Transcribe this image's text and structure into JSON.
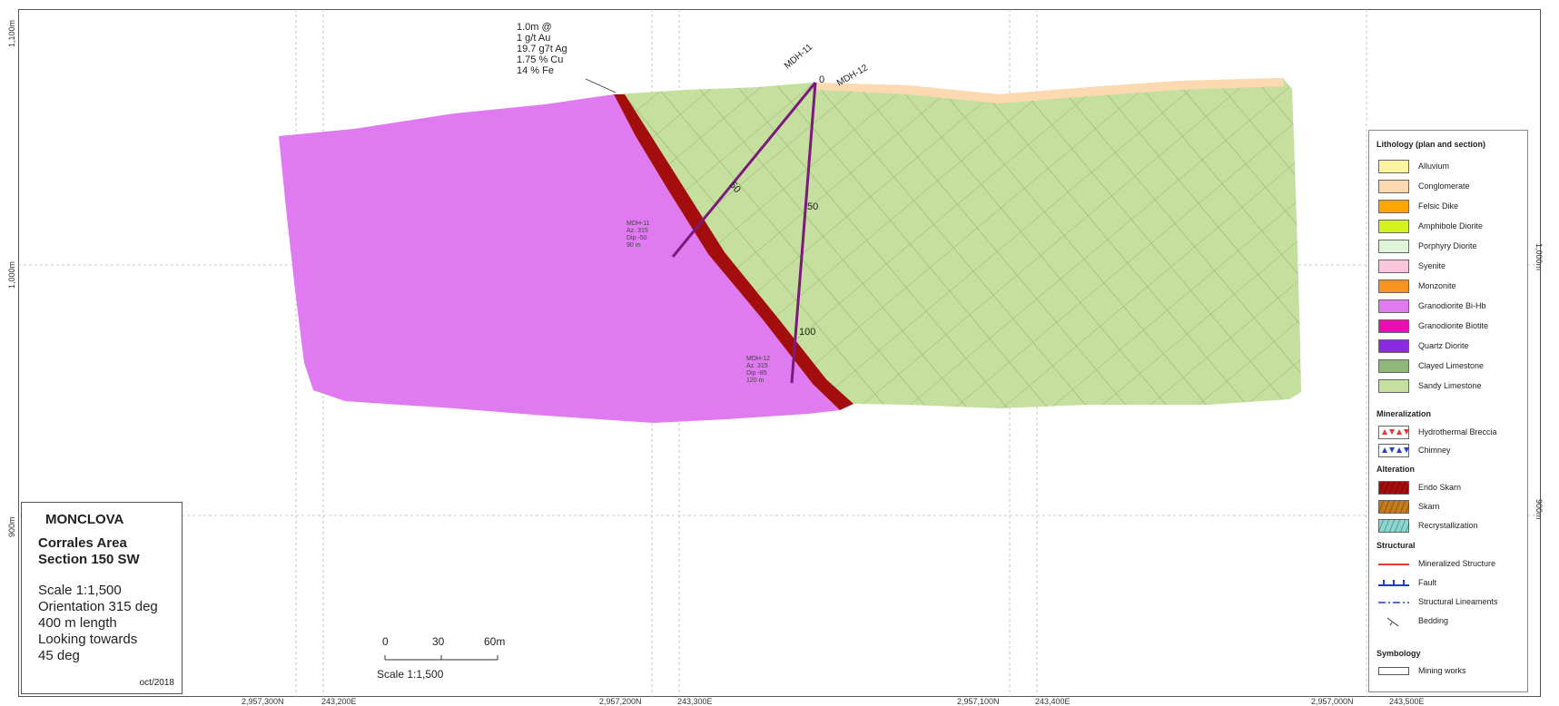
{
  "grid": {
    "elevations": [
      "1,100m",
      "1,000m",
      "900m"
    ],
    "northings": [
      "2,957,300N",
      "2,957,200N",
      "2,957,100N",
      "2,957,000N"
    ],
    "eastings": [
      "243,200E",
      "243,300E",
      "243,400E",
      "243,500E"
    ]
  },
  "assay_note": [
    "1.0m @",
    "1 g/t Au",
    "19.7 g7t Ag",
    "1.75 % Cu",
    "14 % Fe"
  ],
  "drillholes": [
    {
      "name": "MDH-11",
      "tag": [
        "MDH-11",
        "Az. 315",
        "Dip -50",
        "90 m"
      ],
      "depth_labels": [
        "0",
        "50"
      ]
    },
    {
      "name": "MDH-12",
      "tag": [
        "MDH-12",
        "Az. 315",
        "Dip -85",
        "120 m"
      ],
      "depth_labels": [
        "50",
        "100"
      ]
    }
  ],
  "title_block": {
    "name": "MONCLOVA",
    "area": [
      "Corrales Area",
      "Section 150 SW"
    ],
    "info": [
      "Scale 1:1,500",
      "Orientation 315 deg",
      "400 m length",
      "Looking towards",
      "45 deg"
    ],
    "date": "oct/2018"
  },
  "scale_bar": {
    "ticks": [
      "0",
      "30",
      "60m"
    ],
    "label": "Scale 1:1,500"
  },
  "legend": {
    "lithology_title": "Lithology (plan and section)",
    "lithology": [
      {
        "label": "Alluvium",
        "color": "#fff59d"
      },
      {
        "label": "Conglomerate",
        "color": "#fcd9b0"
      },
      {
        "label": "Felsic Dike",
        "color": "#ffa500"
      },
      {
        "label": "Amphibole Diorite",
        "color": "#d4f21b"
      },
      {
        "label": "Porphyry Diorite",
        "color": "#e0f5d8"
      },
      {
        "label": "Syenite",
        "color": "#fbc6dc"
      },
      {
        "label": "Monzonite",
        "color": "#f7931e"
      },
      {
        "label": "Granodiorite Bi-Hb",
        "color": "#e07af0"
      },
      {
        "label": "Granodiorite Biotite",
        "color": "#f00bb0"
      },
      {
        "label": "Quartz Diorite",
        "color": "#8a2be2"
      },
      {
        "label": "Clayed Limestone",
        "color": "#8fb878"
      },
      {
        "label": "Sandy Limestone",
        "color": "#c5df9e"
      }
    ],
    "mineralization_title": "Mineralization",
    "mineralization": [
      {
        "label": "Hydrothermal Breccia",
        "color": "#e53935"
      },
      {
        "label": "Chimney",
        "color": "#2a3fd6"
      }
    ],
    "alteration_title": "Alteration",
    "alteration": [
      {
        "label": "Endo Skarn",
        "color": "#a30d0d"
      },
      {
        "label": "Skarn",
        "color": "#c87a1e"
      },
      {
        "label": "Recrystallization",
        "color": "#8ad6cf"
      }
    ],
    "structural_title": "Structural",
    "structural": [
      {
        "label": "Mineralized Structure",
        "color": "#e53935"
      },
      {
        "label": "Fault",
        "color": "#1e3bd6"
      },
      {
        "label": "Structural Lineaments",
        "color": "#1e3bd6"
      },
      {
        "label": "Bedding",
        "color": "#333333"
      }
    ],
    "symbology_title": "Symbology",
    "symbology": [
      {
        "label": "Mining works",
        "color": "#ffffff"
      }
    ]
  },
  "colors": {
    "granodiorite": "#e07af0",
    "sandy_limestone": "#c5df9e",
    "conglomerate": "#fcd9b0",
    "endo_skarn": "#a30d0d",
    "drillhole": "#7b1a7b"
  }
}
